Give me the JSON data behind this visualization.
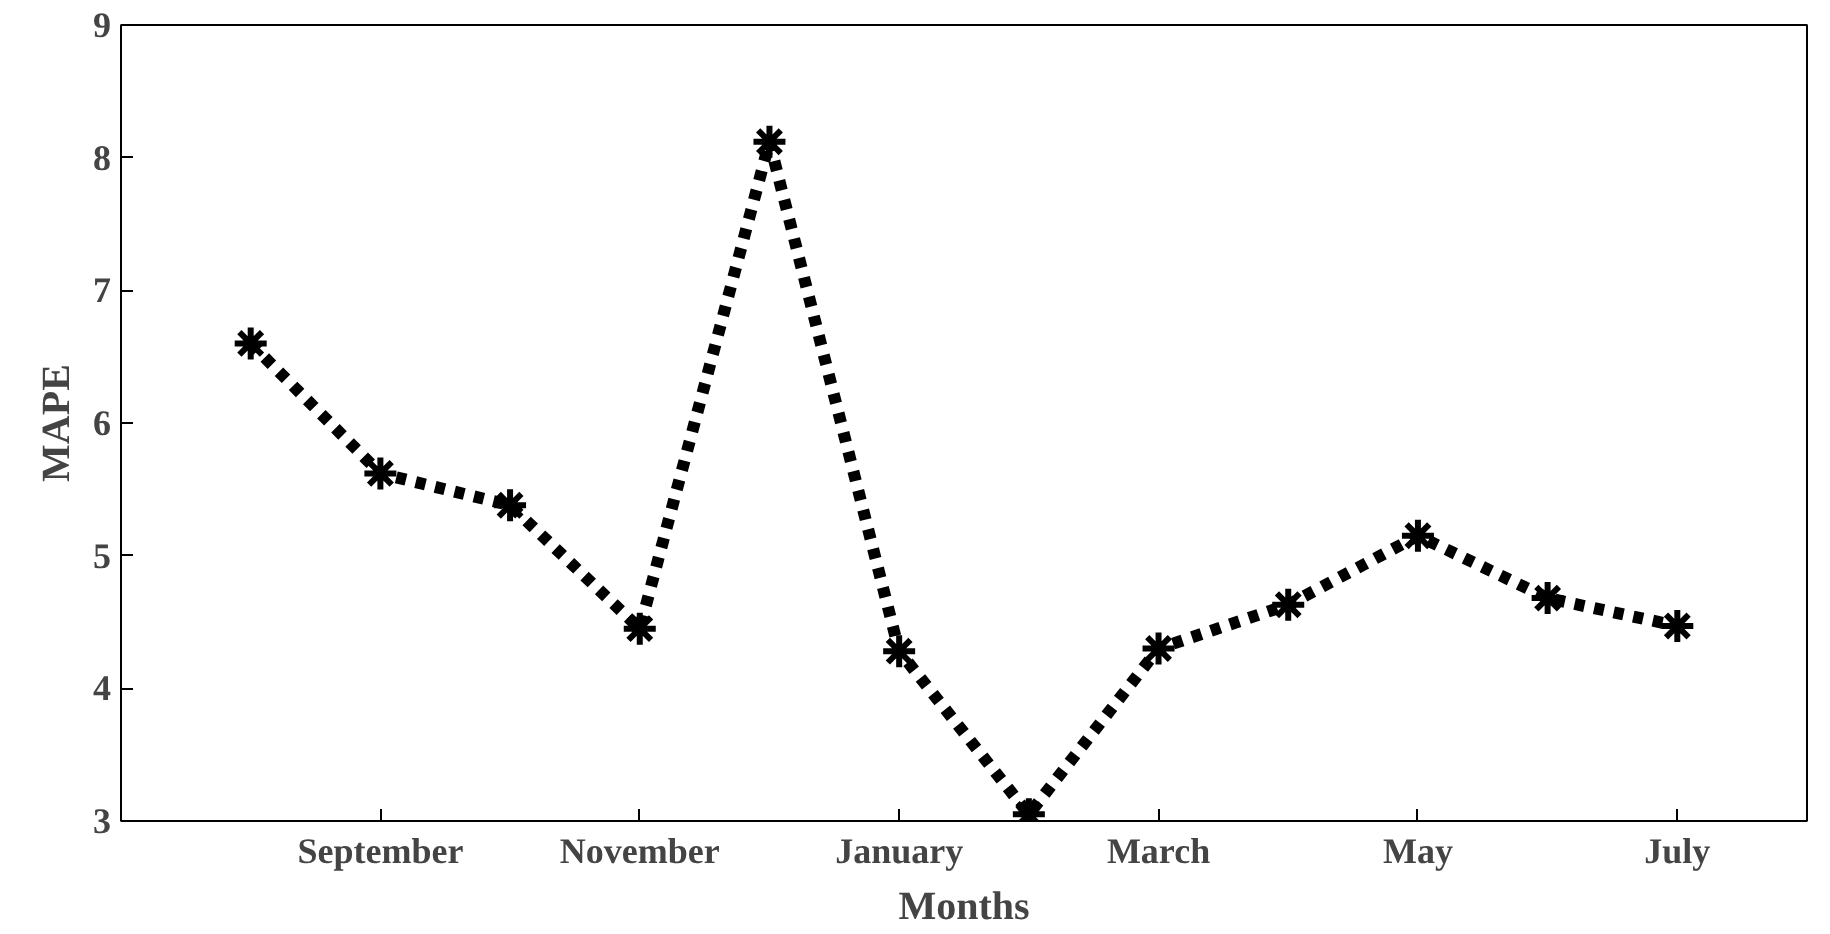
{
  "chart_data": {
    "type": "line",
    "xlabel": "Months",
    "ylabel": "MAPE",
    "categories": [
      null,
      "September",
      null,
      "November",
      null,
      "January",
      null,
      "March",
      null,
      "May",
      null,
      "July"
    ],
    "values": [
      6.6,
      5.62,
      5.38,
      4.45,
      8.12,
      4.28,
      3.05,
      4.3,
      4.63,
      5.15,
      4.68,
      4.47
    ],
    "color": "#000000",
    "marker": "cross",
    "line_style": "dotted",
    "grid": false,
    "ylim": [
      3,
      9
    ],
    "yticks": [
      3,
      4,
      5,
      6,
      7,
      8,
      9
    ]
  }
}
